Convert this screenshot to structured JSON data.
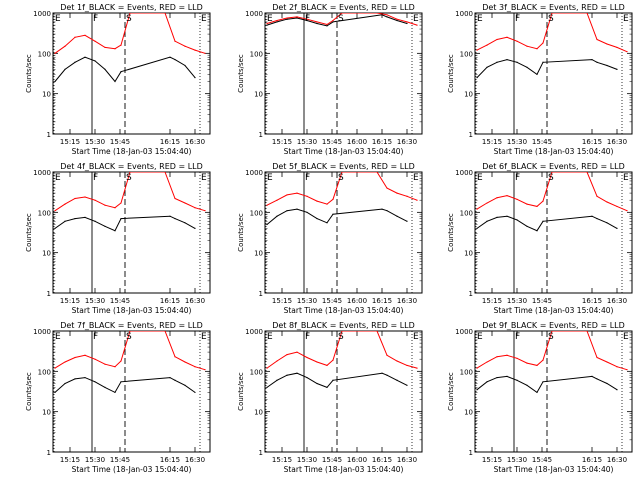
{
  "chart_data": [
    {
      "type": "line",
      "title": "Det 1f_BLACK = Events, RED = LLD",
      "xlabel": "Start Time (18-Jan-03 15:04:40)",
      "ylabel": "Counts/sec",
      "yscale": "log",
      "ylim": [
        1,
        1000
      ],
      "xlim": [
        15.08,
        16.65
      ],
      "x_tick_labels": [
        "15:15",
        "15:30",
        "15:45",
        "16:15",
        "16:30"
      ],
      "x_tick_values": [
        15.25,
        15.5,
        15.75,
        16.25,
        16.5
      ],
      "y_tick_labels": [
        "1",
        "10",
        "100",
        "1000"
      ],
      "markers": {
        "E": [
          15.09,
          16.55
        ],
        "F": [
          15.47
        ],
        "S": [
          15.8
        ]
      },
      "series": [
        {
          "name": "Events",
          "color": "#000000",
          "x": [
            15.1,
            15.2,
            15.3,
            15.4,
            15.5,
            15.6,
            15.7,
            15.76,
            16.25,
            16.3,
            16.4,
            16.5
          ],
          "values": [
            20,
            40,
            60,
            80,
            65,
            40,
            20,
            35,
            80,
            70,
            50,
            25
          ]
        },
        {
          "name": "LLD",
          "color": "#ff0000",
          "x": [
            15.1,
            15.2,
            15.3,
            15.4,
            15.5,
            15.6,
            15.7,
            15.76,
            15.85,
            16.2,
            16.3,
            16.4,
            16.5,
            16.6
          ],
          "values": [
            100,
            150,
            250,
            280,
            200,
            140,
            130,
            160,
            1000,
            1000,
            200,
            150,
            120,
            100
          ]
        }
      ]
    },
    {
      "type": "line",
      "title": "Det 2f_BLACK = Events, RED = LLD",
      "xlabel": "Start Time (18-Jan-03 15:04:40)",
      "ylabel": "Counts/sec",
      "yscale": "log",
      "ylim": [
        1,
        1000
      ],
      "xlim": [
        15.08,
        16.65
      ],
      "x_tick_labels": [
        "15:15",
        "15:30",
        "15:45",
        "16:00",
        "16:15",
        "16:30"
      ],
      "x_tick_values": [
        15.25,
        15.5,
        15.75,
        16.0,
        16.25,
        16.5
      ],
      "y_tick_labels": [
        "1",
        "10",
        "100",
        "1000"
      ],
      "markers": {
        "E": [
          15.09,
          16.55
        ],
        "F": [
          15.47
        ],
        "S": [
          15.8
        ]
      },
      "series": [
        {
          "name": "Events",
          "color": "#000000",
          "x": [
            15.1,
            15.2,
            15.3,
            15.4,
            15.5,
            15.6,
            15.7,
            15.76,
            16.25,
            16.3,
            16.4,
            16.5
          ],
          "values": [
            500,
            600,
            700,
            750,
            650,
            550,
            480,
            600,
            900,
            800,
            650,
            550
          ]
        },
        {
          "name": "LLD",
          "color": "#ff0000",
          "x": [
            15.1,
            15.2,
            15.3,
            15.4,
            15.5,
            15.6,
            15.7,
            15.76,
            15.85,
            16.2,
            16.3,
            16.4,
            16.5,
            16.6
          ],
          "values": [
            550,
            650,
            750,
            800,
            700,
            600,
            520,
            650,
            1000,
            1000,
            900,
            700,
            600,
            500
          ]
        }
      ]
    },
    {
      "type": "line",
      "title": "Det 3f_BLACK = Events, RED = LLD",
      "xlabel": "Start Time (18-Jan-03 15:04:40)",
      "ylabel": "Counts/sec",
      "yscale": "log",
      "ylim": [
        1,
        1000
      ],
      "xlim": [
        15.08,
        16.65
      ],
      "x_tick_labels": [
        "15:15",
        "15:30",
        "15:45",
        "16:15",
        "16:30"
      ],
      "x_tick_values": [
        15.25,
        15.5,
        15.75,
        16.25,
        16.5
      ],
      "y_tick_labels": [
        "1",
        "10",
        "100",
        "1000"
      ],
      "markers": {
        "E": [
          15.09,
          16.55
        ],
        "F": [
          15.47
        ],
        "S": [
          15.8
        ]
      },
      "series": [
        {
          "name": "Events",
          "color": "#000000",
          "x": [
            15.1,
            15.2,
            15.3,
            15.4,
            15.5,
            15.6,
            15.7,
            15.76,
            16.25,
            16.3,
            16.4,
            16.5
          ],
          "values": [
            25,
            45,
            60,
            70,
            60,
            45,
            30,
            60,
            70,
            60,
            50,
            40
          ]
        },
        {
          "name": "LLD",
          "color": "#ff0000",
          "x": [
            15.1,
            15.2,
            15.3,
            15.4,
            15.5,
            15.6,
            15.7,
            15.76,
            15.85,
            16.2,
            16.3,
            16.4,
            16.5,
            16.6
          ],
          "values": [
            120,
            160,
            220,
            250,
            200,
            150,
            130,
            180,
            1000,
            1000,
            220,
            170,
            140,
            110
          ]
        }
      ]
    },
    {
      "type": "line",
      "title": "Det 4f_BLACK = Events, RED = LLD",
      "xlabel": "Start Time (18-Jan-03 15:04:40)",
      "ylabel": "Counts/sec",
      "yscale": "log",
      "ylim": [
        1,
        1000
      ],
      "xlim": [
        15.08,
        16.65
      ],
      "x_tick_labels": [
        "15:15",
        "15:30",
        "15:45",
        "16:15",
        "16:30"
      ],
      "x_tick_values": [
        15.25,
        15.5,
        15.75,
        16.25,
        16.5
      ],
      "y_tick_labels": [
        "1",
        "10",
        "100",
        "1000"
      ],
      "markers": {
        "E": [
          15.09,
          16.55
        ],
        "F": [
          15.47
        ],
        "S": [
          15.8
        ]
      },
      "series": [
        {
          "name": "Events",
          "color": "#000000",
          "x": [
            15.1,
            15.2,
            15.3,
            15.4,
            15.5,
            15.6,
            15.7,
            15.76,
            16.25,
            16.3,
            16.4,
            16.5
          ],
          "values": [
            40,
            60,
            70,
            75,
            60,
            45,
            35,
            70,
            80,
            70,
            55,
            40
          ]
        },
        {
          "name": "LLD",
          "color": "#ff0000",
          "x": [
            15.1,
            15.2,
            15.3,
            15.4,
            15.5,
            15.6,
            15.7,
            15.76,
            15.85,
            16.2,
            16.3,
            16.4,
            16.5,
            16.6
          ],
          "values": [
            110,
            160,
            220,
            240,
            200,
            150,
            130,
            170,
            1000,
            1000,
            220,
            170,
            130,
            110
          ]
        }
      ]
    },
    {
      "type": "line",
      "title": "Det 5f_BLACK = Events, RED = LLD",
      "xlabel": "Start Time (18-Jan-03 15:04:40)",
      "ylabel": "Counts/sec",
      "yscale": "log",
      "ylim": [
        1,
        1000
      ],
      "xlim": [
        15.08,
        16.65
      ],
      "x_tick_labels": [
        "15:15",
        "15:30",
        "15:45",
        "16:00",
        "16:15",
        "16:30"
      ],
      "x_tick_values": [
        15.25,
        15.5,
        15.75,
        16.0,
        16.25,
        16.5
      ],
      "y_tick_labels": [
        "1",
        "10",
        "100",
        "1000"
      ],
      "markers": {
        "E": [
          15.09,
          16.55
        ],
        "F": [
          15.47
        ],
        "S": [
          15.8
        ]
      },
      "series": [
        {
          "name": "Events",
          "color": "#000000",
          "x": [
            15.1,
            15.2,
            15.3,
            15.4,
            15.5,
            15.6,
            15.7,
            15.76,
            16.25,
            16.3,
            16.4,
            16.5
          ],
          "values": [
            50,
            80,
            110,
            120,
            100,
            70,
            55,
            90,
            120,
            110,
            80,
            60
          ]
        },
        {
          "name": "LLD",
          "color": "#ff0000",
          "x": [
            15.1,
            15.2,
            15.3,
            15.4,
            15.5,
            15.6,
            15.7,
            15.76,
            15.85,
            16.2,
            16.3,
            16.4,
            16.5,
            16.6
          ],
          "values": [
            150,
            200,
            270,
            300,
            250,
            190,
            160,
            210,
            1000,
            1000,
            400,
            300,
            250,
            200
          ]
        }
      ]
    },
    {
      "type": "line",
      "title": "Det 6f_BLACK = Events, RED = LLD",
      "xlabel": "Start Time (18-Jan-03 15:04:40)",
      "ylabel": "Counts/sec",
      "yscale": "log",
      "ylim": [
        1,
        1000
      ],
      "xlim": [
        15.08,
        16.65
      ],
      "x_tick_labels": [
        "15:15",
        "15:30",
        "15:45",
        "16:15",
        "16:30"
      ],
      "x_tick_values": [
        15.25,
        15.5,
        15.75,
        16.25,
        16.5
      ],
      "y_tick_labels": [
        "1",
        "10",
        "100",
        "1000"
      ],
      "markers": {
        "E": [
          15.09,
          16.55
        ],
        "F": [
          15.47
        ],
        "S": [
          15.8
        ]
      },
      "series": [
        {
          "name": "Events",
          "color": "#000000",
          "x": [
            15.1,
            15.2,
            15.3,
            15.4,
            15.5,
            15.6,
            15.7,
            15.76,
            16.25,
            16.3,
            16.4,
            16.5
          ],
          "values": [
            40,
            60,
            75,
            80,
            65,
            45,
            35,
            60,
            80,
            70,
            55,
            40
          ]
        },
        {
          "name": "LLD",
          "color": "#ff0000",
          "x": [
            15.1,
            15.2,
            15.3,
            15.4,
            15.5,
            15.6,
            15.7,
            15.76,
            15.85,
            16.2,
            16.3,
            16.4,
            16.5,
            16.6
          ],
          "values": [
            120,
            170,
            230,
            260,
            210,
            160,
            140,
            190,
            1000,
            1000,
            250,
            180,
            140,
            110
          ]
        }
      ]
    },
    {
      "type": "line",
      "title": "Det 7f_BLACK = Events, RED = LLD",
      "xlabel": "Start Time (18-Jan-03 15:04:40)",
      "ylabel": "Counts/sec",
      "yscale": "log",
      "ylim": [
        1,
        1000
      ],
      "xlim": [
        15.08,
        16.65
      ],
      "x_tick_labels": [
        "15:15",
        "15:30",
        "15:45",
        "16:15",
        "16:30"
      ],
      "x_tick_values": [
        15.25,
        15.5,
        15.75,
        16.25,
        16.5
      ],
      "y_tick_labels": [
        "1",
        "10",
        "100",
        "1000"
      ],
      "markers": {
        "E": [
          15.09,
          16.55
        ],
        "F": [
          15.47
        ],
        "S": [
          15.8
        ]
      },
      "series": [
        {
          "name": "Events",
          "color": "#000000",
          "x": [
            15.1,
            15.2,
            15.3,
            15.4,
            15.5,
            15.6,
            15.7,
            15.76,
            16.25,
            16.3,
            16.4,
            16.5
          ],
          "values": [
            30,
            50,
            65,
            70,
            55,
            40,
            30,
            55,
            70,
            60,
            45,
            30
          ]
        },
        {
          "name": "LLD",
          "color": "#ff0000",
          "x": [
            15.1,
            15.2,
            15.3,
            15.4,
            15.5,
            15.6,
            15.7,
            15.76,
            15.85,
            16.2,
            16.3,
            16.4,
            16.5,
            16.6
          ],
          "values": [
            120,
            170,
            220,
            250,
            200,
            150,
            130,
            180,
            1000,
            1000,
            230,
            170,
            130,
            110
          ]
        }
      ]
    },
    {
      "type": "line",
      "title": "Det 8f_BLACK = Events, RED = LLD",
      "xlabel": "Start Time (18-Jan-03 15:04:40)",
      "ylabel": "Counts/sec",
      "yscale": "log",
      "ylim": [
        1,
        1000
      ],
      "xlim": [
        15.08,
        16.65
      ],
      "x_tick_labels": [
        "15:15",
        "15:30",
        "15:45",
        "16:00",
        "16:15",
        "16:30"
      ],
      "x_tick_values": [
        15.25,
        15.5,
        15.75,
        16.0,
        16.25,
        16.5
      ],
      "y_tick_labels": [
        "1",
        "10",
        "100",
        "1000"
      ],
      "markers": {
        "E": [
          15.09,
          16.55
        ],
        "F": [
          15.47
        ],
        "S": [
          15.8
        ]
      },
      "series": [
        {
          "name": "Events",
          "color": "#000000",
          "x": [
            15.1,
            15.2,
            15.3,
            15.4,
            15.5,
            15.6,
            15.7,
            15.76,
            16.25,
            16.3,
            16.4,
            16.5
          ],
          "values": [
            40,
            60,
            80,
            90,
            70,
            50,
            40,
            60,
            90,
            80,
            60,
            45
          ]
        },
        {
          "name": "LLD",
          "color": "#ff0000",
          "x": [
            15.1,
            15.2,
            15.3,
            15.4,
            15.5,
            15.6,
            15.7,
            15.76,
            15.85,
            16.2,
            16.3,
            16.4,
            16.5,
            16.6
          ],
          "values": [
            120,
            180,
            260,
            300,
            220,
            170,
            140,
            190,
            1000,
            1000,
            250,
            180,
            140,
            120
          ]
        }
      ]
    },
    {
      "type": "line",
      "title": "Det 9f_BLACK = Events, RED = LLD",
      "xlabel": "Start Time (18-Jan-03 15:04:40)",
      "ylabel": "Counts/sec",
      "yscale": "log",
      "ylim": [
        1,
        1000
      ],
      "xlim": [
        15.08,
        16.65
      ],
      "x_tick_labels": [
        "15:15",
        "15:30",
        "15:45",
        "16:15",
        "16:30"
      ],
      "x_tick_values": [
        15.25,
        15.5,
        15.75,
        16.25,
        16.5
      ],
      "y_tick_labels": [
        "1",
        "10",
        "100",
        "1000"
      ],
      "markers": {
        "E": [
          15.09,
          16.55
        ],
        "F": [
          15.47
        ],
        "S": [
          15.8
        ]
      },
      "series": [
        {
          "name": "Events",
          "color": "#000000",
          "x": [
            15.1,
            15.2,
            15.3,
            15.4,
            15.5,
            15.6,
            15.7,
            15.76,
            16.25,
            16.3,
            16.4,
            16.5
          ],
          "values": [
            35,
            55,
            70,
            75,
            60,
            45,
            30,
            55,
            75,
            65,
            50,
            35
          ]
        },
        {
          "name": "LLD",
          "color": "#ff0000",
          "x": [
            15.1,
            15.2,
            15.3,
            15.4,
            15.5,
            15.6,
            15.7,
            15.76,
            15.85,
            16.2,
            16.3,
            16.4,
            16.5,
            16.6
          ],
          "values": [
            120,
            170,
            230,
            250,
            210,
            160,
            140,
            190,
            1000,
            1000,
            220,
            170,
            130,
            110
          ]
        }
      ]
    }
  ]
}
